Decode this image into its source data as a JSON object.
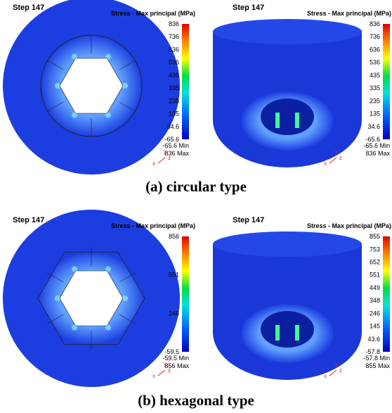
{
  "panels": [
    {
      "step": "Step  147",
      "legend_title": "Stress - Max principal (MPa)",
      "ticks": [
        836,
        736,
        636,
        536,
        435,
        335,
        235,
        135,
        34.6,
        -65.6
      ],
      "min_label": "-65.6 Min",
      "max_label": "836 Max"
    },
    {
      "step": "Step  147",
      "legend_title": "Stress - Max principal (MPa)",
      "ticks": [
        836,
        736,
        636,
        536,
        435,
        335,
        235,
        135,
        34.6,
        -65.6
      ],
      "min_label": "-65.6 Min",
      "max_label": "836 Max"
    },
    {
      "step": "Step  147",
      "legend_title": "Stress - Max principal (MPa)",
      "ticks": [
        856,
        551,
        246,
        -59.5
      ],
      "min_label": "-59.5 Min",
      "max_label": "856 Max"
    },
    {
      "step": "Step  147",
      "legend_title": "Stress - Max principal (MPa)",
      "ticks": [
        855,
        753,
        652,
        551,
        449,
        348,
        246,
        145,
        43.6,
        -57.8
      ],
      "min_label": "-57.8 Min",
      "max_label": "855 Max"
    }
  ],
  "axis_labels": [
    "x",
    "y",
    "z"
  ],
  "captions": [
    "(a)  circular  type",
    "(b)  hexagonal  type"
  ]
}
